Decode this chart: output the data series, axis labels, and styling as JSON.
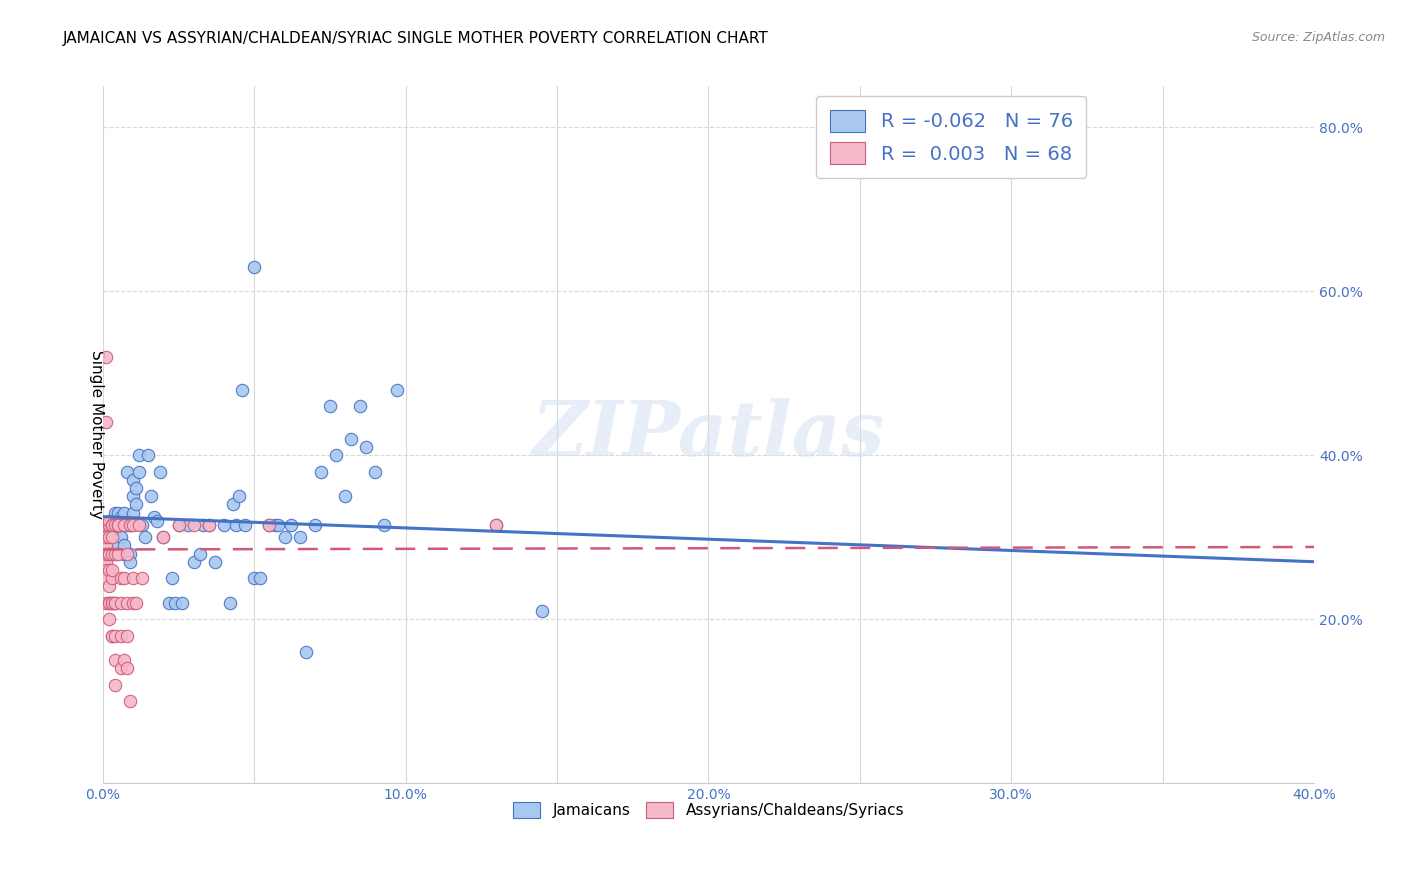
{
  "title": "JAMAICAN VS ASSYRIAN/CHALDEAN/SYRIAC SINGLE MOTHER POVERTY CORRELATION CHART",
  "source": "Source: ZipAtlas.com",
  "ylabel": "Single Mother Poverty",
  "xlim": [
    0.0,
    0.4
  ],
  "ylim": [
    0.0,
    0.85
  ],
  "xtick_labels": [
    "0.0%",
    "",
    "10.0%",
    "",
    "20.0%",
    "",
    "30.0%",
    "",
    "40.0%"
  ],
  "xtick_vals": [
    0.0,
    0.05,
    0.1,
    0.15,
    0.2,
    0.25,
    0.3,
    0.35,
    0.4
  ],
  "ytick_labels": [
    "20.0%",
    "40.0%",
    "60.0%",
    "80.0%"
  ],
  "ytick_vals": [
    0.2,
    0.4,
    0.6,
    0.8
  ],
  "blue_color": "#a8c8f0",
  "pink_color": "#f5b8c8",
  "blue_line_color": "#4472c4",
  "pink_line_color": "#d05878",
  "legend_text_color": "#4472c4",
  "watermark": "ZIPatlas",
  "R_blue": -0.062,
  "N_blue": 76,
  "R_pink": 0.003,
  "N_pink": 68,
  "blue_scatter": [
    [
      0.002,
      0.315
    ],
    [
      0.003,
      0.315
    ],
    [
      0.003,
      0.32
    ],
    [
      0.004,
      0.31
    ],
    [
      0.004,
      0.32
    ],
    [
      0.004,
      0.33
    ],
    [
      0.005,
      0.315
    ],
    [
      0.005,
      0.33
    ],
    [
      0.005,
      0.29
    ],
    [
      0.006,
      0.3
    ],
    [
      0.006,
      0.325
    ],
    [
      0.006,
      0.315
    ],
    [
      0.007,
      0.28
    ],
    [
      0.007,
      0.33
    ],
    [
      0.007,
      0.29
    ],
    [
      0.008,
      0.38
    ],
    [
      0.008,
      0.315
    ],
    [
      0.009,
      0.28
    ],
    [
      0.009,
      0.27
    ],
    [
      0.009,
      0.315
    ],
    [
      0.01,
      0.37
    ],
    [
      0.01,
      0.33
    ],
    [
      0.01,
      0.35
    ],
    [
      0.011,
      0.36
    ],
    [
      0.011,
      0.34
    ],
    [
      0.012,
      0.4
    ],
    [
      0.012,
      0.38
    ],
    [
      0.013,
      0.315
    ],
    [
      0.014,
      0.3
    ],
    [
      0.015,
      0.4
    ],
    [
      0.016,
      0.35
    ],
    [
      0.017,
      0.325
    ],
    [
      0.018,
      0.32
    ],
    [
      0.019,
      0.38
    ],
    [
      0.02,
      0.3
    ],
    [
      0.022,
      0.22
    ],
    [
      0.023,
      0.25
    ],
    [
      0.024,
      0.22
    ],
    [
      0.025,
      0.315
    ],
    [
      0.026,
      0.22
    ],
    [
      0.028,
      0.315
    ],
    [
      0.03,
      0.27
    ],
    [
      0.032,
      0.28
    ],
    [
      0.033,
      0.315
    ],
    [
      0.035,
      0.315
    ],
    [
      0.037,
      0.27
    ],
    [
      0.04,
      0.315
    ],
    [
      0.042,
      0.22
    ],
    [
      0.043,
      0.34
    ],
    [
      0.044,
      0.315
    ],
    [
      0.045,
      0.35
    ],
    [
      0.046,
      0.48
    ],
    [
      0.047,
      0.315
    ],
    [
      0.05,
      0.25
    ],
    [
      0.052,
      0.25
    ],
    [
      0.055,
      0.315
    ],
    [
      0.057,
      0.315
    ],
    [
      0.058,
      0.315
    ],
    [
      0.06,
      0.3
    ],
    [
      0.062,
      0.315
    ],
    [
      0.065,
      0.3
    ],
    [
      0.067,
      0.16
    ],
    [
      0.07,
      0.315
    ],
    [
      0.072,
      0.38
    ],
    [
      0.075,
      0.46
    ],
    [
      0.077,
      0.4
    ],
    [
      0.08,
      0.35
    ],
    [
      0.082,
      0.42
    ],
    [
      0.085,
      0.46
    ],
    [
      0.087,
      0.41
    ],
    [
      0.09,
      0.38
    ],
    [
      0.093,
      0.315
    ],
    [
      0.05,
      0.63
    ],
    [
      0.097,
      0.48
    ],
    [
      0.13,
      0.315
    ],
    [
      0.145,
      0.21
    ]
  ],
  "pink_scatter": [
    [
      0.001,
      0.52
    ],
    [
      0.001,
      0.44
    ],
    [
      0.001,
      0.315
    ],
    [
      0.001,
      0.29
    ],
    [
      0.001,
      0.27
    ],
    [
      0.001,
      0.26
    ],
    [
      0.001,
      0.315
    ],
    [
      0.001,
      0.315
    ],
    [
      0.001,
      0.3
    ],
    [
      0.001,
      0.28
    ],
    [
      0.001,
      0.25
    ],
    [
      0.001,
      0.22
    ],
    [
      0.002,
      0.315
    ],
    [
      0.002,
      0.28
    ],
    [
      0.002,
      0.24
    ],
    [
      0.002,
      0.22
    ],
    [
      0.002,
      0.315
    ],
    [
      0.002,
      0.3
    ],
    [
      0.002,
      0.26
    ],
    [
      0.002,
      0.22
    ],
    [
      0.002,
      0.2
    ],
    [
      0.002,
      0.32
    ],
    [
      0.002,
      0.28
    ],
    [
      0.003,
      0.25
    ],
    [
      0.003,
      0.22
    ],
    [
      0.003,
      0.18
    ],
    [
      0.003,
      0.315
    ],
    [
      0.003,
      0.28
    ],
    [
      0.003,
      0.22
    ],
    [
      0.003,
      0.18
    ],
    [
      0.003,
      0.315
    ],
    [
      0.003,
      0.3
    ],
    [
      0.003,
      0.26
    ],
    [
      0.004,
      0.22
    ],
    [
      0.004,
      0.15
    ],
    [
      0.004,
      0.315
    ],
    [
      0.004,
      0.28
    ],
    [
      0.004,
      0.22
    ],
    [
      0.004,
      0.18
    ],
    [
      0.004,
      0.12
    ],
    [
      0.005,
      0.315
    ],
    [
      0.005,
      0.28
    ],
    [
      0.005,
      0.315
    ],
    [
      0.006,
      0.25
    ],
    [
      0.006,
      0.22
    ],
    [
      0.006,
      0.18
    ],
    [
      0.006,
      0.14
    ],
    [
      0.007,
      0.315
    ],
    [
      0.007,
      0.25
    ],
    [
      0.007,
      0.15
    ],
    [
      0.008,
      0.28
    ],
    [
      0.008,
      0.22
    ],
    [
      0.008,
      0.18
    ],
    [
      0.008,
      0.14
    ],
    [
      0.009,
      0.1
    ],
    [
      0.009,
      0.315
    ],
    [
      0.01,
      0.22
    ],
    [
      0.01,
      0.315
    ],
    [
      0.01,
      0.25
    ],
    [
      0.011,
      0.22
    ],
    [
      0.012,
      0.315
    ],
    [
      0.013,
      0.25
    ],
    [
      0.02,
      0.3
    ],
    [
      0.025,
      0.315
    ],
    [
      0.03,
      0.315
    ],
    [
      0.035,
      0.315
    ],
    [
      0.055,
      0.315
    ],
    [
      0.13,
      0.315
    ]
  ],
  "blue_trendline_x": [
    0.0,
    0.4
  ],
  "blue_trendline_y": [
    0.325,
    0.27
  ],
  "pink_trendline_x": [
    0.0,
    0.4
  ],
  "pink_trendline_y": [
    0.285,
    0.288
  ],
  "background_color": "#ffffff",
  "grid_color_h": "#d8d8d8",
  "grid_color_v": "#d8d8d8",
  "title_fontsize": 11,
  "axis_label_color": "#4472c4"
}
